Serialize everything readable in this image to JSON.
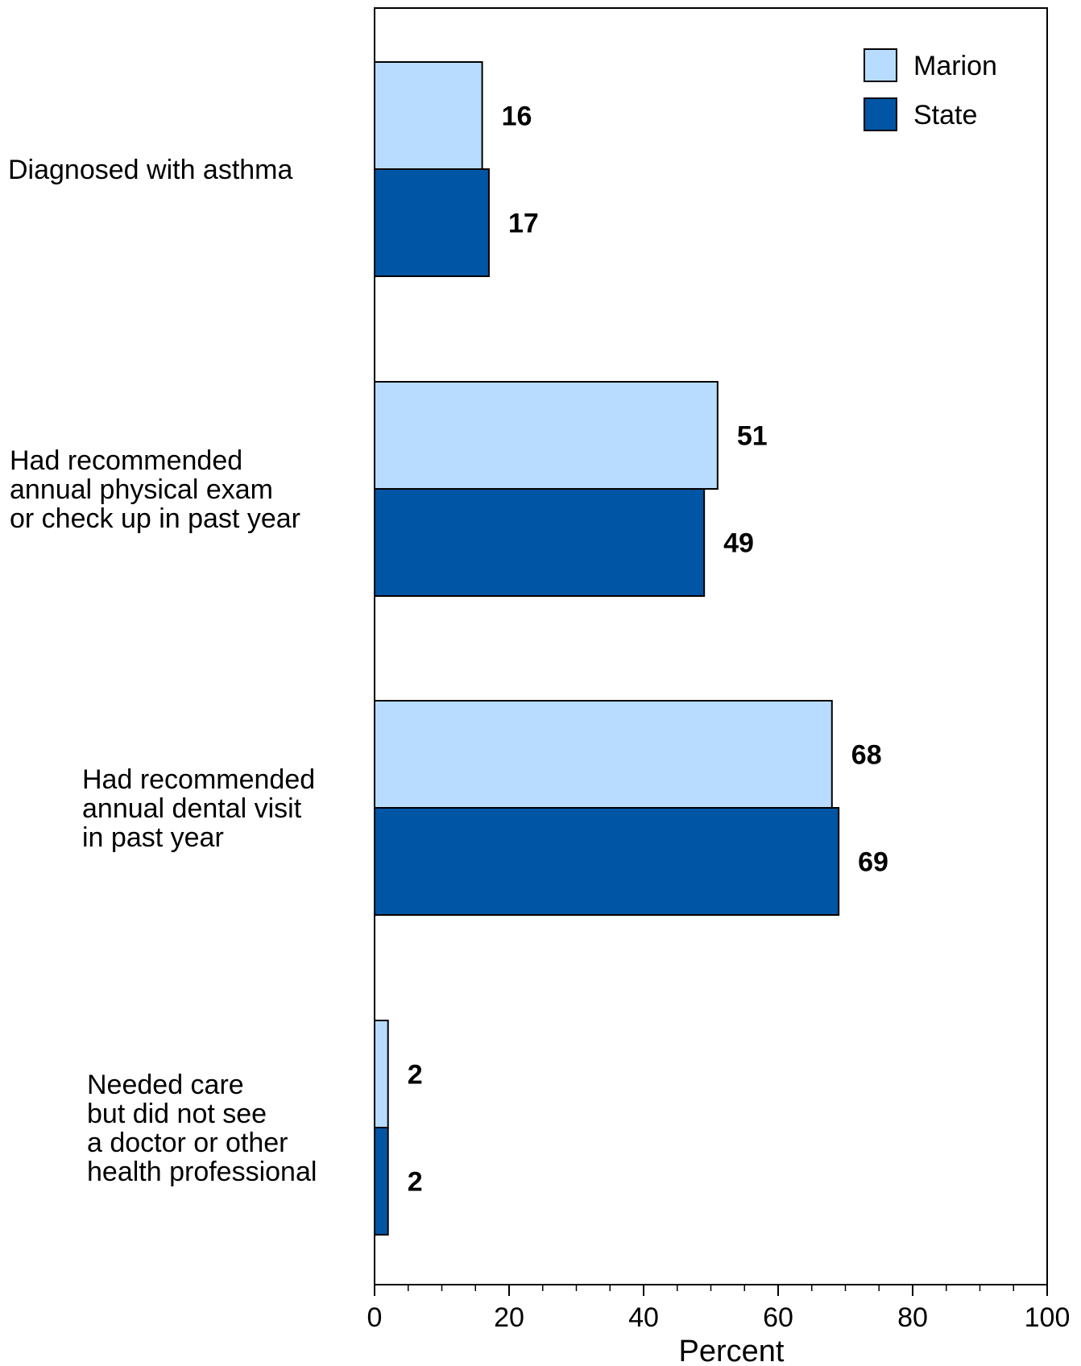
{
  "chart_data": {
    "type": "bar",
    "orientation": "horizontal",
    "categories": [
      [
        "Diagnosed with asthma"
      ],
      [
        "Had recommended",
        "annual physical exam",
        "or check up in past year"
      ],
      [
        "Had recommended",
        "annual dental visit",
        "in past year"
      ],
      [
        "Needed care",
        "but did not see",
        "a doctor or other",
        "health professional"
      ]
    ],
    "series": [
      {
        "name": "Marion",
        "color": "#b8dcff",
        "values": [
          16,
          51,
          68,
          2
        ],
        "value_labels": [
          "16",
          "51",
          "68",
          "2"
        ]
      },
      {
        "name": "State",
        "color": "#0055a5",
        "values": [
          17,
          49,
          69,
          2
        ],
        "value_labels": [
          "17",
          "49",
          "69",
          "2"
        ]
      }
    ],
    "xlabel": "Percent",
    "xlim": [
      0,
      100
    ],
    "major_ticks": [
      0,
      20,
      40,
      60,
      80,
      100
    ],
    "tick_labels": [
      "0",
      "20",
      "40",
      "60",
      "80",
      "100"
    ],
    "minor_tick_step": 5,
    "grid": false,
    "legend_position": "top-right"
  }
}
